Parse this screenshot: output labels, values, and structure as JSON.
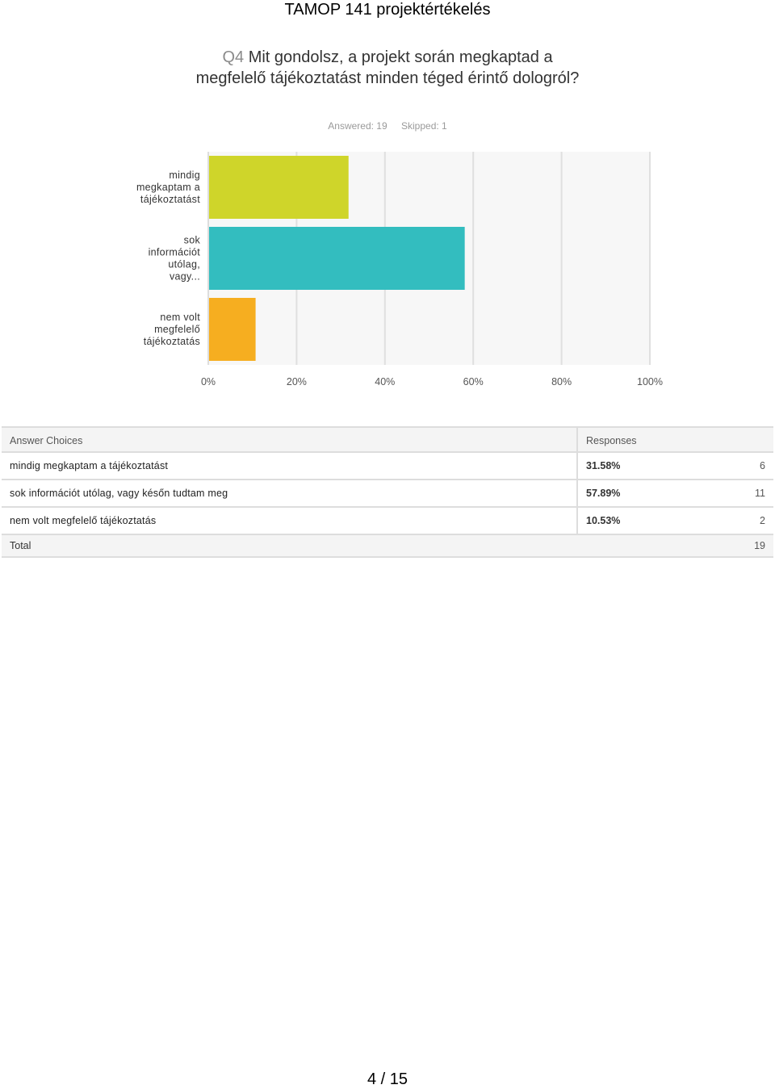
{
  "document": {
    "title": "TAMOP 141 projektértékelés",
    "page_number": "4 / 15"
  },
  "question": {
    "number": "Q4",
    "text": "Mit gondolsz, a projekt során megkaptad a megfelelő tájékoztatást minden téged érintő dologról?",
    "answered": "Answered: 19",
    "skipped": "Skipped: 1"
  },
  "chart_data": {
    "type": "bar",
    "orientation": "horizontal",
    "categories": [
      [
        "mindig",
        "megkaptam a",
        "tájékoztatást"
      ],
      [
        "sok",
        "információt",
        "utólag,",
        "vagy..."
      ],
      [
        "nem volt",
        "megfelelő",
        "tájékoztatás"
      ]
    ],
    "values": [
      31.58,
      57.89,
      10.53
    ],
    "colors": [
      "#cfd52a",
      "#33bdbf",
      "#f6ae20"
    ],
    "xlim": [
      0,
      100
    ],
    "ticks": [
      "0%",
      "20%",
      "40%",
      "60%",
      "80%",
      "100%"
    ],
    "grid": true
  },
  "table": {
    "headers": [
      "Answer Choices",
      "Responses"
    ],
    "rows": [
      {
        "choice": "mindig megkaptam a tájékoztatást",
        "percent": "31.58%",
        "count": "6"
      },
      {
        "choice": "sok információt utólag, vagy későn tudtam meg",
        "percent": "57.89%",
        "count": "11"
      },
      {
        "choice": "nem volt megfelelő tájékoztatás",
        "percent": "10.53%",
        "count": "2"
      }
    ],
    "total_label": "Total",
    "total_value": "19"
  }
}
